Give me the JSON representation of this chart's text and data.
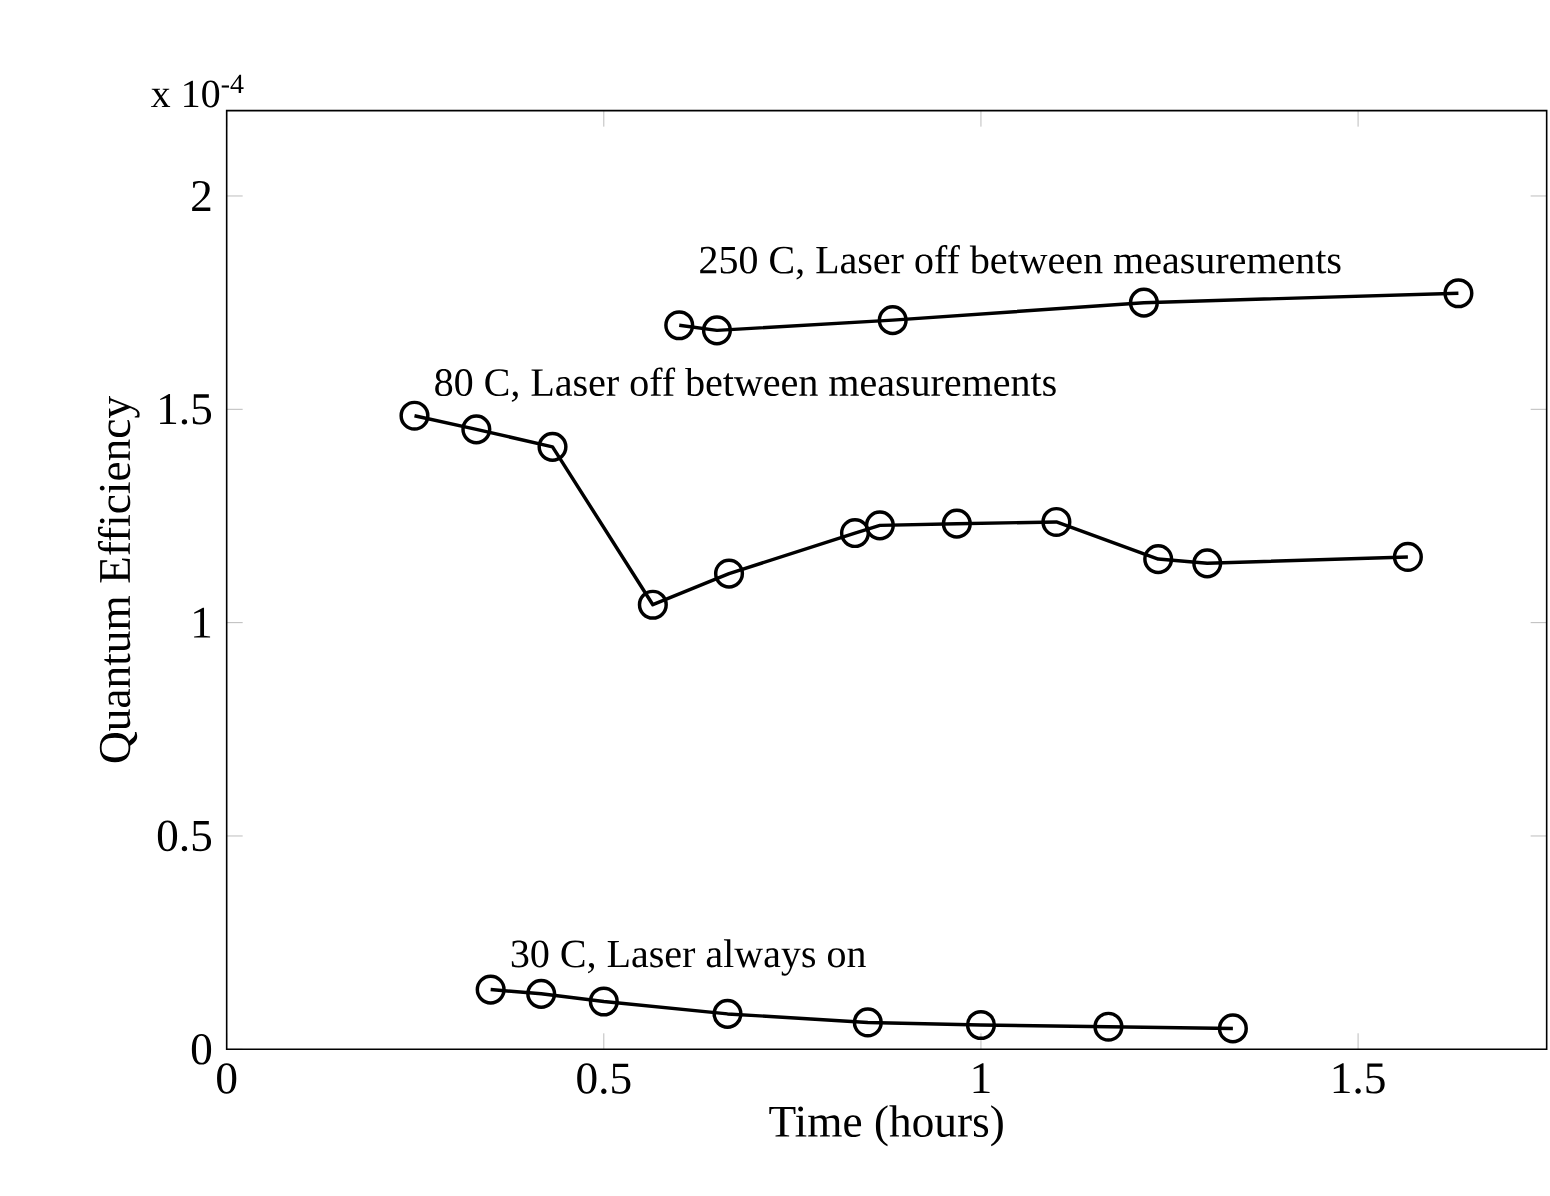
{
  "chart_data": {
    "type": "line",
    "xlabel": "Time (hours)",
    "ylabel": "Quantum Efficiency",
    "xlim": [
      0,
      1.75
    ],
    "ylim": [
      0,
      2.2
    ],
    "xticks": [
      0,
      0.5,
      1,
      1.5
    ],
    "yticks": [
      0,
      0.5,
      1,
      1.5,
      2
    ],
    "marker": "circle",
    "line_style": "solid",
    "series": [
      {
        "name": "250 C, Laser off between measurements",
        "color": "#000000",
        "x": [
          0.6,
          0.65,
          0.883,
          1.216,
          1.633
        ],
        "values": [
          1.697,
          1.685,
          1.709,
          1.75,
          1.772
        ]
      },
      {
        "name": "80 C, Laser off between measurements",
        "color": "#000000",
        "x": [
          0.249,
          0.331,
          0.432,
          0.565,
          0.666,
          0.833,
          0.866,
          0.968,
          1.1,
          1.235,
          1.3,
          1.566
        ],
        "values": [
          1.485,
          1.453,
          1.412,
          1.042,
          1.115,
          1.21,
          1.228,
          1.232,
          1.236,
          1.149,
          1.139,
          1.154
        ]
      },
      {
        "name": "30 C, Laser always on",
        "color": "#000000",
        "x": [
          0.35,
          0.417,
          0.5,
          0.664,
          0.85,
          1.0,
          1.169,
          1.334
        ],
        "values": [
          0.14,
          0.13,
          0.112,
          0.083,
          0.063,
          0.057,
          0.053,
          0.049
        ]
      }
    ],
    "annotations": [
      "x 10$^{-4}$"
    ]
  }
}
